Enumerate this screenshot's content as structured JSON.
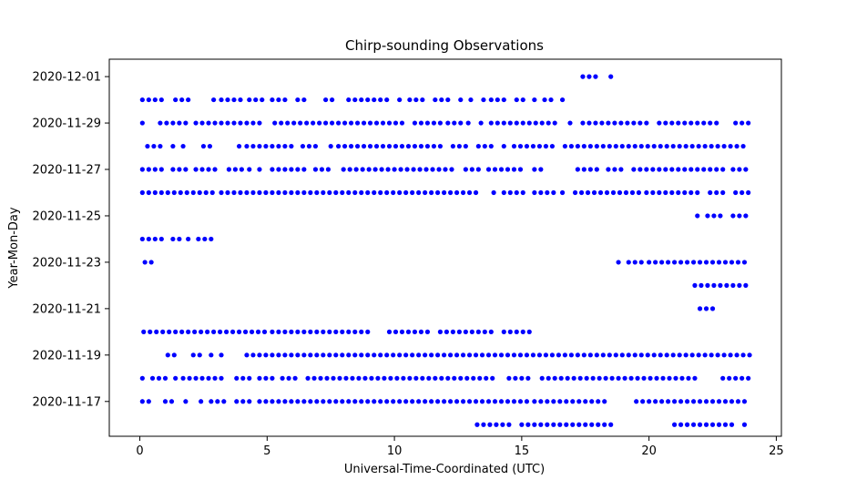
{
  "chart_data": {
    "type": "scatter",
    "title": "Chirp-sounding Observations",
    "xlabel": "Universal-Time-Coordinated (UTC)",
    "ylabel": "Year-Mon-Day",
    "xlim": [
      -1.2,
      25.2
    ],
    "ylim": [
      "2020-11-15T12:00",
      "2020-12-01T18:00"
    ],
    "x_ticks": [
      0,
      5,
      10,
      15,
      20,
      25
    ],
    "y_ticks": [
      "2020-11-17",
      "2020-11-19",
      "2020-11-21",
      "2020-11-23",
      "2020-11-25",
      "2020-11-27",
      "2020-11-29",
      "2020-12-01"
    ],
    "grid": false,
    "legend": "none",
    "marker_color": "#0000ff",
    "step_hours": 0.25,
    "rows": [
      {
        "date": "2020-11-16",
        "runs": [
          [
            13.25,
            14.5
          ],
          [
            15.0,
            18.5
          ],
          [
            21.0,
            23.25
          ],
          [
            23.75,
            23.75
          ]
        ]
      },
      {
        "date": "2020-11-17",
        "runs": [
          [
            0.1,
            0.4
          ],
          [
            1.0,
            1.25
          ],
          [
            1.8,
            1.8
          ],
          [
            2.4,
            2.4
          ],
          [
            2.8,
            3.4
          ],
          [
            3.8,
            4.4
          ],
          [
            4.7,
            15.25
          ],
          [
            15.5,
            18.25
          ],
          [
            19.5,
            21.25
          ],
          [
            21.5,
            23.9
          ]
        ]
      },
      {
        "date": "2020-11-18",
        "runs": [
          [
            0.1,
            0.1
          ],
          [
            0.5,
            1.0
          ],
          [
            1.4,
            1.4
          ],
          [
            1.7,
            3.4
          ],
          [
            3.8,
            4.4
          ],
          [
            4.7,
            5.3
          ],
          [
            5.6,
            6.3
          ],
          [
            6.6,
            14.0
          ],
          [
            14.5,
            15.25
          ],
          [
            15.8,
            21.8
          ],
          [
            22.9,
            23.9
          ]
        ]
      },
      {
        "date": "2020-11-19",
        "runs": [
          [
            1.1,
            1.4
          ],
          [
            2.1,
            2.4
          ],
          [
            2.8,
            2.8
          ],
          [
            3.2,
            3.2
          ],
          [
            4.2,
            24.0
          ]
        ]
      },
      {
        "date": "2020-11-20",
        "runs": [
          [
            0.15,
            4.9
          ],
          [
            5.2,
            9.0
          ],
          [
            9.8,
            11.5
          ],
          [
            11.8,
            14.0
          ],
          [
            14.3,
            15.5
          ]
        ]
      },
      {
        "date": "2020-11-21",
        "runs": [
          [
            22.0,
            22.5
          ]
        ]
      },
      {
        "date": "2020-11-22",
        "runs": [
          [
            21.8,
            23.8
          ]
        ]
      },
      {
        "date": "2020-11-23",
        "runs": [
          [
            0.2,
            0.6
          ],
          [
            18.8,
            18.8
          ],
          [
            19.2,
            19.8
          ],
          [
            20.0,
            21.8
          ],
          [
            22.0,
            23.9
          ]
        ]
      },
      {
        "date": "2020-11-24",
        "runs": [
          [
            0.1,
            1.0
          ],
          [
            1.3,
            1.6
          ],
          [
            1.9,
            1.9
          ],
          [
            2.3,
            2.8
          ]
        ]
      },
      {
        "date": "2020-11-25",
        "runs": [
          [
            21.9,
            21.9
          ],
          [
            22.3,
            23.0
          ],
          [
            23.3,
            23.9
          ]
        ]
      },
      {
        "date": "2020-11-26",
        "runs": [
          [
            0.1,
            2.9
          ],
          [
            3.2,
            13.3
          ],
          [
            13.9,
            13.9
          ],
          [
            14.3,
            15.1
          ],
          [
            15.5,
            16.3
          ],
          [
            16.6,
            16.6
          ],
          [
            17.1,
            19.6
          ],
          [
            19.9,
            22.1
          ],
          [
            22.4,
            23.1
          ],
          [
            23.4,
            23.9
          ]
        ]
      },
      {
        "date": "2020-11-27",
        "runs": [
          [
            0.1,
            1.0
          ],
          [
            1.3,
            1.8
          ],
          [
            2.2,
            3.1
          ],
          [
            3.5,
            4.0
          ],
          [
            4.3,
            4.3
          ],
          [
            4.7,
            4.9
          ],
          [
            5.2,
            6.6
          ],
          [
            6.9,
            7.6
          ],
          [
            8.0,
            12.4
          ],
          [
            12.8,
            13.3
          ],
          [
            13.7,
            15.1
          ],
          [
            15.5,
            15.8
          ],
          [
            17.2,
            18.1
          ],
          [
            18.4,
            19.1
          ],
          [
            19.4,
            22.9
          ],
          [
            23.3,
            23.9
          ]
        ]
      },
      {
        "date": "2020-11-28",
        "runs": [
          [
            0.3,
            0.9
          ],
          [
            1.3,
            1.3
          ],
          [
            1.7,
            1.9
          ],
          [
            2.5,
            2.9
          ],
          [
            3.9,
            3.9
          ],
          [
            4.2,
            6.1
          ],
          [
            6.4,
            7.1
          ],
          [
            7.5,
            7.5
          ],
          [
            7.8,
            12.0
          ],
          [
            12.3,
            13.0
          ],
          [
            13.3,
            14.0
          ],
          [
            14.3,
            14.3
          ],
          [
            14.7,
            16.3
          ],
          [
            16.7,
            23.9
          ]
        ]
      },
      {
        "date": "2020-11-29",
        "runs": [
          [
            0.1,
            0.3
          ],
          [
            0.8,
            1.9
          ],
          [
            2.2,
            4.9
          ],
          [
            5.3,
            10.5
          ],
          [
            10.8,
            11.8
          ],
          [
            12.1,
            12.6
          ],
          [
            12.9,
            13.0
          ],
          [
            13.4,
            13.5
          ],
          [
            13.8,
            16.4
          ],
          [
            16.9,
            17.1
          ],
          [
            17.4,
            20.1
          ],
          [
            20.4,
            22.7
          ],
          [
            23.4,
            23.9
          ]
        ]
      },
      {
        "date": "2020-11-30",
        "runs": [
          [
            0.1,
            0.9
          ],
          [
            1.4,
            1.9
          ],
          [
            2.9,
            2.9
          ],
          [
            3.2,
            4.0
          ],
          [
            4.3,
            4.8
          ],
          [
            5.2,
            5.7
          ],
          [
            6.2,
            6.5
          ],
          [
            7.3,
            7.7
          ],
          [
            8.2,
            9.9
          ],
          [
            10.2,
            10.2
          ],
          [
            10.6,
            11.3
          ],
          [
            11.6,
            12.3
          ],
          [
            12.6,
            12.6
          ],
          [
            13.0,
            13.0
          ],
          [
            13.5,
            13.5
          ],
          [
            13.8,
            14.5
          ],
          [
            14.8,
            15.1
          ],
          [
            15.5,
            15.6
          ],
          [
            15.9,
            16.3
          ],
          [
            16.6,
            16.6
          ]
        ]
      },
      {
        "date": "2020-12-01",
        "runs": [
          [
            17.4,
            18.1
          ],
          [
            18.5,
            18.5
          ]
        ]
      }
    ]
  }
}
